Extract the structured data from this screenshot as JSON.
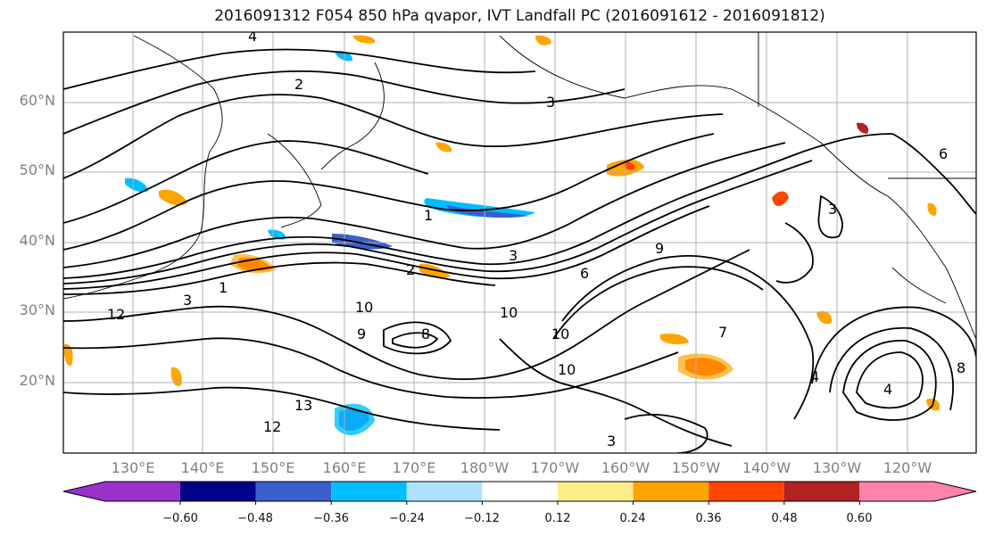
{
  "title": "2016091312 F054 850 hPa qvapor, IVT Landfall PC (2016091612 - 2016091812)",
  "lat_labels": [
    "60°N",
    "50°N",
    "40°N",
    "30°N",
    "20°N"
  ],
  "lon_labels": [
    "130°E",
    "140°E",
    "150°E",
    "160°E",
    "170°E",
    "180°W",
    "170°W",
    "160°W",
    "150°W",
    "140°W",
    "130°W",
    "120°W"
  ],
  "colorbar": {
    "ticks": [
      "−0.60",
      "−0.48",
      "−0.36",
      "−0.24",
      "−0.12",
      "0.12",
      "0.24",
      "0.36",
      "0.48",
      "0.60"
    ],
    "colors": [
      "#9932cc",
      "#00008b",
      "#3a5fcd",
      "#00bfff",
      "#b0e2ff",
      "#ffffff",
      "#ffec8b",
      "#ffa500",
      "#ff4500",
      "#b22222",
      "#ff82ab"
    ]
  },
  "contour_labels": [
    "4",
    "2",
    "3",
    "1",
    "2",
    "3",
    "1",
    "3",
    "9",
    "6",
    "10",
    "9",
    "8",
    "10",
    "10",
    "13",
    "12",
    "10",
    "7",
    "4",
    "12",
    "8",
    "3",
    "6",
    "3",
    "4"
  ]
}
